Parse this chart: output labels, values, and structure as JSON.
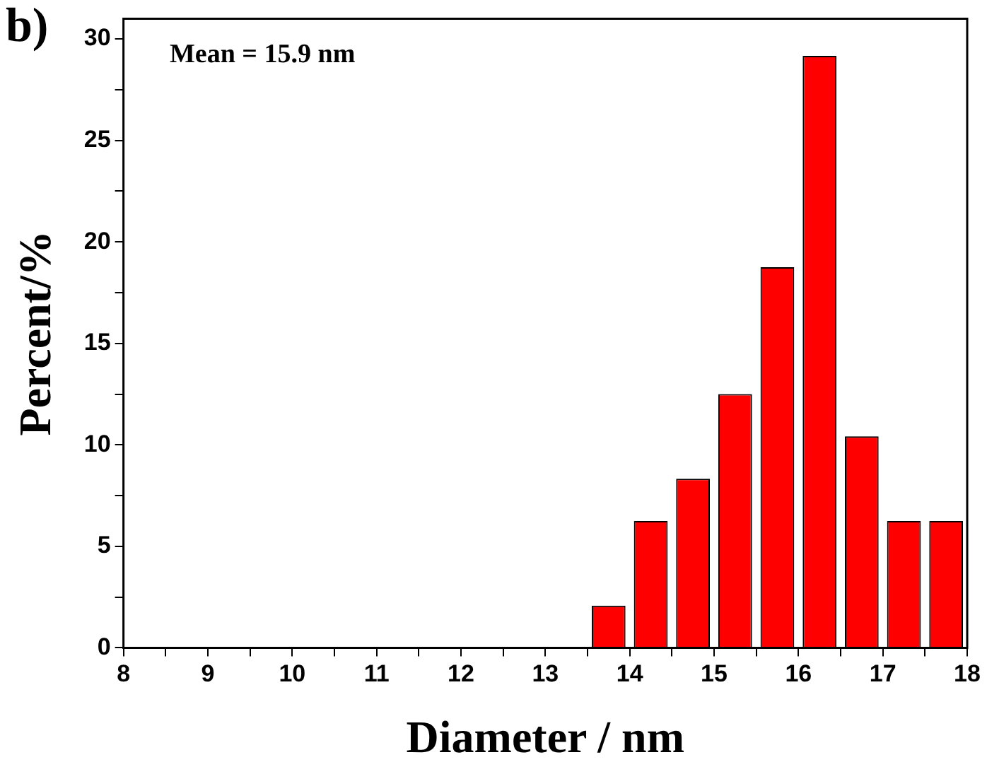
{
  "chart_data": {
    "type": "histogram",
    "xlabel": "Diameter / nm",
    "ylabel": "Percent/%",
    "annotations": [
      "b)",
      "Mean = 15.9 nm"
    ],
    "bins": [
      13.5,
      14,
      14.5,
      15,
      15.5,
      16,
      16.5,
      17,
      17.5,
      18
    ],
    "values": [
      2.08,
      6.25,
      8.33,
      12.5,
      18.75,
      29.17,
      10.42,
      6.25,
      6.25
    ],
    "color": "#ff0000",
    "xlim": [
      8,
      18
    ],
    "xticks": [
      8,
      {
        "value": 8.5,
        "label": null
      },
      9,
      {
        "value": 9.5,
        "label": null
      },
      10,
      {
        "value": 10.5,
        "label": null
      },
      11,
      {
        "value": 11.5,
        "label": null
      },
      12,
      {
        "value": 12.5,
        "label": null
      },
      13,
      {
        "value": 13.5,
        "label": null
      },
      14,
      {
        "value": 14.5,
        "label": null
      },
      15,
      {
        "value": 15.5,
        "label": null
      },
      16,
      {
        "value": 16.5,
        "label": null
      },
      17,
      {
        "value": 17.5,
        "label": null
      },
      18
    ],
    "ylim": [
      0,
      31
    ],
    "yticks": [
      0,
      {
        "value": 2.5,
        "label": null
      },
      5,
      {
        "value": 7.5,
        "label": null
      },
      10,
      {
        "value": 12.5,
        "label": null
      },
      15,
      {
        "value": 17.5,
        "label": null
      },
      20,
      {
        "value": 22.5,
        "label": null
      },
      25,
      {
        "value": 27.5,
        "label": null
      },
      30
    ],
    "grid": false,
    "legend": false
  }
}
